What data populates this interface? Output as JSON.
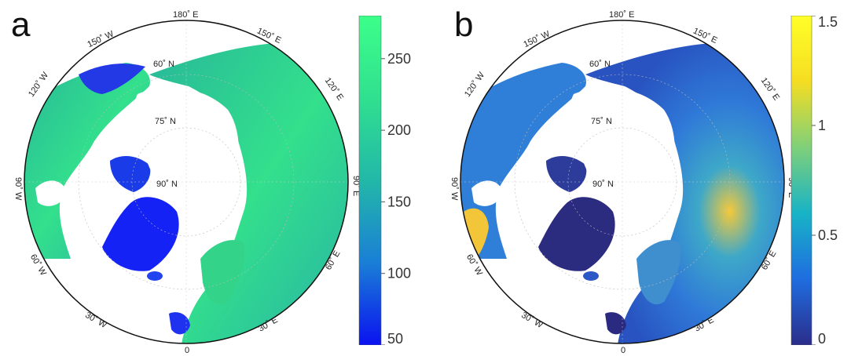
{
  "panels": [
    {
      "letter": "a",
      "colorbar": {
        "min": 50,
        "max": 280,
        "ticks": [
          {
            "value": 250,
            "label": "250"
          },
          {
            "value": 200,
            "label": "200"
          },
          {
            "value": 150,
            "label": "150"
          },
          {
            "value": 100,
            "label": "100"
          },
          {
            "value": 50,
            "label": "50"
          }
        ],
        "colors": [
          "#0a12f0",
          "#1a7fd6",
          "#22b8a8",
          "#30e08f",
          "#3cff8a"
        ]
      },
      "land_color_main": "#2fcf8d",
      "land_color_low": "#1a2bf0"
    },
    {
      "letter": "b",
      "colorbar": {
        "min": 0,
        "max": 1.5,
        "ticks": [
          {
            "value": 1.5,
            "label": "1.5"
          },
          {
            "value": 1,
            "label": "1"
          },
          {
            "value": 0.5,
            "label": "0.5"
          },
          {
            "value": 0,
            "label": "0"
          }
        ],
        "colors": [
          "#2b2d8a",
          "#1f6de0",
          "#18b3c6",
          "#7fd07a",
          "#f5dd22",
          "#ffff28"
        ]
      },
      "land_color_main": "#2f7fd8",
      "land_color_low": "#2a2b80"
    }
  ],
  "graticule": {
    "longitude_labels": [
      "180˚ E",
      "150˚ E",
      "120˚ E",
      "90˚ E",
      "60˚ E",
      "30˚ E",
      "0",
      "30˚ W",
      "60˚ W",
      "90˚ W",
      "120˚ W",
      "150˚ W"
    ],
    "latitude_labels": [
      "60˚ N",
      "75˚ N",
      "90˚ N"
    ]
  }
}
